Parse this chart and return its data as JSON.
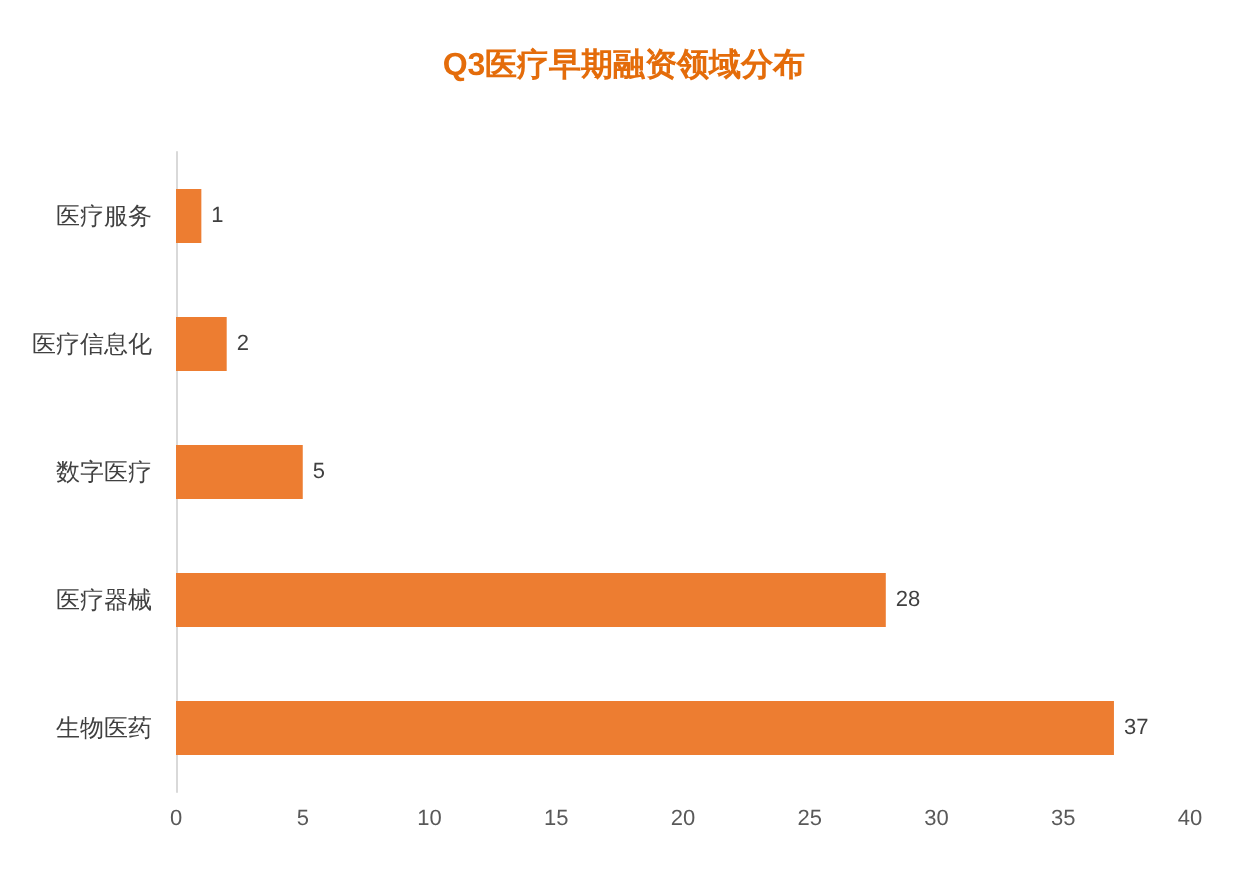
{
  "chart_data": {
    "type": "bar",
    "orientation": "horizontal",
    "title": "Q3医疗早期融资领域分布",
    "categories": [
      "医疗服务",
      "医疗信息化",
      "数字医疗",
      "医疗器械",
      "生物医药"
    ],
    "values": [
      1,
      2,
      5,
      28,
      37
    ],
    "color": "#ed7d31",
    "xlim": [
      0,
      40
    ],
    "xticks": [
      0,
      5,
      10,
      15,
      20,
      25,
      30,
      35,
      40
    ],
    "data_labels": true,
    "grid": false
  }
}
